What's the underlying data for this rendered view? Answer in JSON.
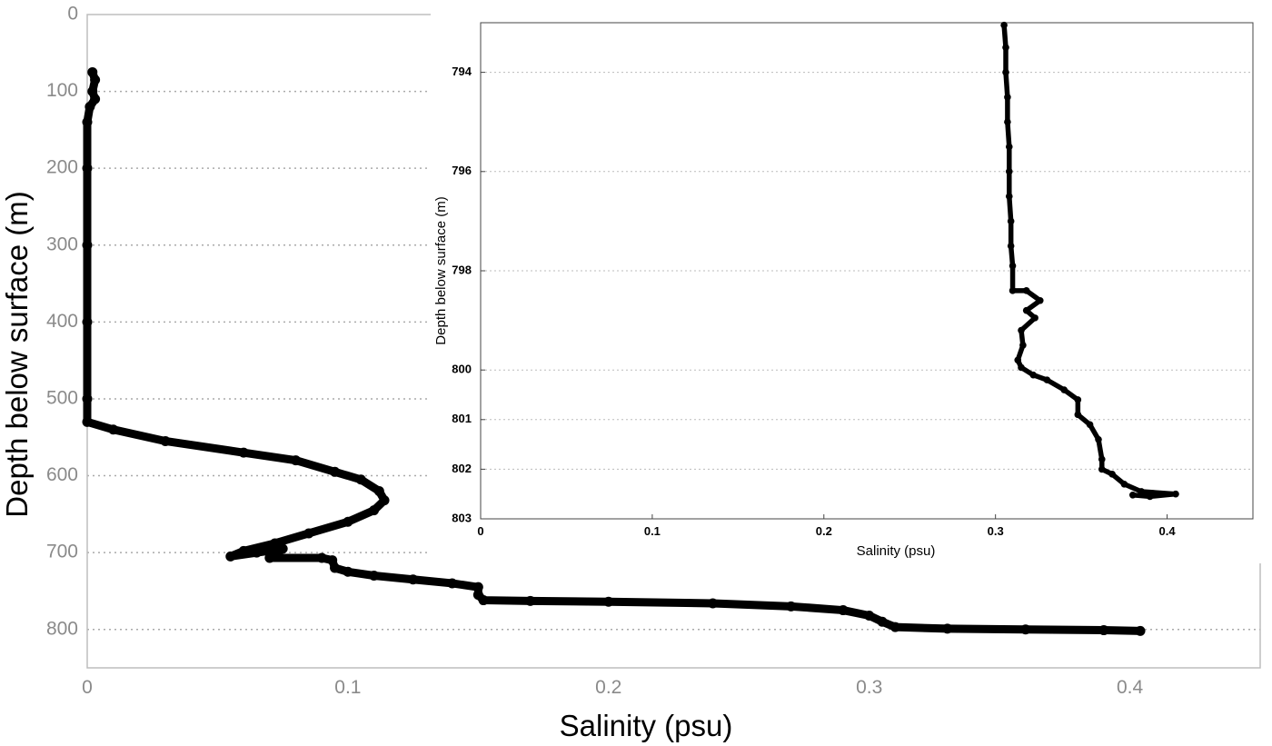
{
  "chart_data": [
    {
      "type": "line",
      "xlabel": "Salinity (psu)",
      "ylabel": "Depth below surface (m)",
      "xlim": [
        0,
        0.45
      ],
      "ylim": [
        0,
        850
      ],
      "y_reversed": true,
      "grid": "horizontal-dotted",
      "xticks": [
        0,
        0.1,
        0.2,
        0.3,
        0.4
      ],
      "xtick_labels": [
        "0",
        "0.1",
        "0.2",
        "0.3",
        "0.4"
      ],
      "yticks": [
        0,
        100,
        200,
        300,
        400,
        500,
        600,
        700,
        800
      ],
      "ytick_labels": [
        "0",
        "100",
        "200",
        "300",
        "400",
        "500",
        "600",
        "700",
        "800"
      ],
      "series": [
        {
          "color": "#000000",
          "points": [
            [
              0.002,
              75
            ],
            [
              0.003,
              85
            ],
            [
              0.002,
              100
            ],
            [
              0.003,
              110
            ],
            [
              0.001,
              120
            ],
            [
              0.0,
              140
            ],
            [
              0.0,
              200
            ],
            [
              0.0,
              300
            ],
            [
              0.0,
              400
            ],
            [
              0.0,
              500
            ],
            [
              0.0,
              530
            ],
            [
              0.01,
              540
            ],
            [
              0.03,
              555
            ],
            [
              0.06,
              570
            ],
            [
              0.08,
              580
            ],
            [
              0.095,
              595
            ],
            [
              0.105,
              605
            ],
            [
              0.112,
              620
            ],
            [
              0.114,
              632
            ],
            [
              0.11,
              645
            ],
            [
              0.1,
              660
            ],
            [
              0.085,
              675
            ],
            [
              0.072,
              688
            ],
            [
              0.06,
              698
            ],
            [
              0.055,
              705
            ],
            [
              0.065,
              700
            ],
            [
              0.075,
              695
            ],
            [
              0.07,
              707
            ],
            [
              0.09,
              707
            ],
            [
              0.094,
              710
            ],
            [
              0.095,
              720
            ],
            [
              0.1,
              725
            ],
            [
              0.11,
              730
            ],
            [
              0.125,
              735
            ],
            [
              0.14,
              740
            ],
            [
              0.15,
              745
            ],
            [
              0.15,
              755
            ],
            [
              0.152,
              762
            ],
            [
              0.17,
              763
            ],
            [
              0.2,
              764
            ],
            [
              0.24,
              766
            ],
            [
              0.27,
              770
            ],
            [
              0.29,
              775
            ],
            [
              0.3,
              782
            ],
            [
              0.305,
              790
            ],
            [
              0.31,
              797
            ],
            [
              0.33,
              799
            ],
            [
              0.36,
              800
            ],
            [
              0.39,
              801
            ],
            [
              0.404,
              802
            ]
          ]
        }
      ]
    },
    {
      "type": "line",
      "xlabel": "Salinity (psu)",
      "ylabel": "Depth below surface (m)",
      "xlim": [
        0,
        0.45
      ],
      "ylim": [
        793,
        803
      ],
      "y_reversed": true,
      "grid": "horizontal-dotted",
      "xticks": [
        0,
        0.1,
        0.2,
        0.3,
        0.4
      ],
      "xtick_labels": [
        "0",
        "0.1",
        "0.2",
        "0.3",
        "0.4"
      ],
      "yticks": [
        794,
        796,
        798,
        800,
        801,
        802,
        803
      ],
      "ytick_labels": [
        "794",
        "796",
        "798",
        "800",
        "801",
        "802",
        "803"
      ],
      "series": [
        {
          "color": "#000000",
          "points": [
            [
              0.305,
              793.05
            ],
            [
              0.306,
              793.5
            ],
            [
              0.306,
              794.0
            ],
            [
              0.307,
              794.5
            ],
            [
              0.307,
              795.0
            ],
            [
              0.308,
              795.5
            ],
            [
              0.308,
              796.0
            ],
            [
              0.308,
              796.5
            ],
            [
              0.309,
              797.0
            ],
            [
              0.309,
              797.5
            ],
            [
              0.31,
              797.9
            ],
            [
              0.31,
              798.4
            ],
            [
              0.318,
              798.4
            ],
            [
              0.326,
              798.6
            ],
            [
              0.318,
              798.8
            ],
            [
              0.323,
              798.95
            ],
            [
              0.315,
              799.2
            ],
            [
              0.316,
              799.5
            ],
            [
              0.313,
              799.8
            ],
            [
              0.315,
              799.95
            ],
            [
              0.322,
              800.1
            ],
            [
              0.33,
              800.2
            ],
            [
              0.34,
              800.4
            ],
            [
              0.348,
              800.6
            ],
            [
              0.348,
              800.9
            ],
            [
              0.355,
              801.1
            ],
            [
              0.36,
              801.4
            ],
            [
              0.362,
              801.8
            ],
            [
              0.362,
              802.0
            ],
            [
              0.368,
              802.1
            ],
            [
              0.375,
              802.3
            ],
            [
              0.385,
              802.45
            ],
            [
              0.405,
              802.5
            ],
            [
              0.39,
              802.55
            ],
            [
              0.38,
              802.52
            ]
          ]
        }
      ]
    }
  ]
}
